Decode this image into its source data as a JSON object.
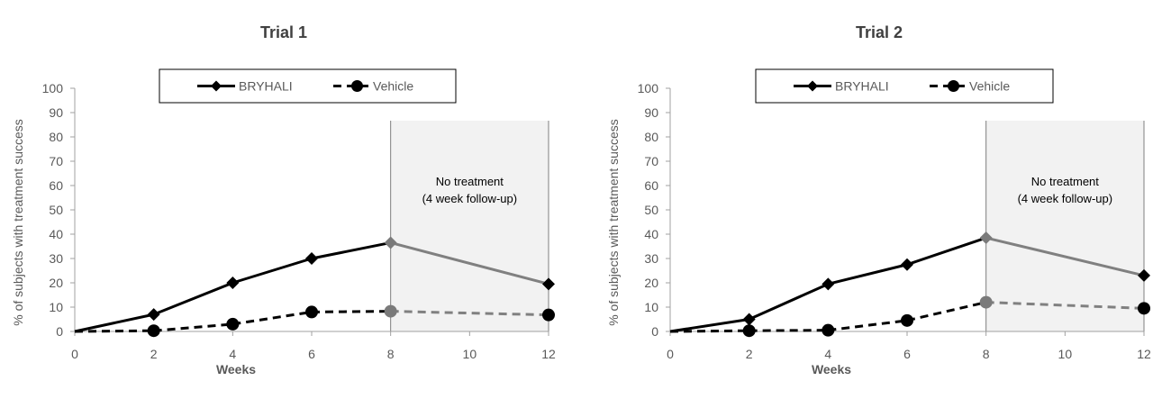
{
  "chart_data": [
    {
      "type": "line",
      "title": "Trial 1",
      "xlabel": "Weeks",
      "ylabel": "% of subjects with treatment success",
      "x_ticks": [
        0,
        2,
        4,
        6,
        8,
        10,
        12
      ],
      "y_ticks": [
        0,
        10,
        20,
        30,
        40,
        50,
        60,
        70,
        80,
        90,
        100
      ],
      "xlim": [
        0,
        12
      ],
      "ylim": [
        0,
        100
      ],
      "grid": false,
      "legend_position": "top-center",
      "shaded_region": {
        "x_start": 8,
        "x_end": 12,
        "label_line1": "No treatment",
        "label_line2": "(4 week follow-up)"
      },
      "series": [
        {
          "name": "BRYHALI",
          "marker": "diamond",
          "line": "solid",
          "x": [
            0,
            2,
            4,
            6,
            8,
            12
          ],
          "values": [
            0,
            7,
            20,
            30,
            36.5,
            19.5
          ]
        },
        {
          "name": "Vehicle",
          "marker": "circle",
          "line": "dashed",
          "x": [
            0,
            2,
            4,
            6,
            8,
            12
          ],
          "values": [
            0,
            0.3,
            3,
            8,
            8.3,
            6.8
          ]
        }
      ]
    },
    {
      "type": "line",
      "title": "Trial 2",
      "xlabel": "Weeks",
      "ylabel": "% of subjects with treatment success",
      "x_ticks": [
        0,
        2,
        4,
        6,
        8,
        10,
        12
      ],
      "y_ticks": [
        0,
        10,
        20,
        30,
        40,
        50,
        60,
        70,
        80,
        90,
        100
      ],
      "xlim": [
        0,
        12
      ],
      "ylim": [
        0,
        100
      ],
      "grid": false,
      "legend_position": "top-center",
      "shaded_region": {
        "x_start": 8,
        "x_end": 12,
        "label_line1": "No treatment",
        "label_line2": "(4 week follow-up)"
      },
      "series": [
        {
          "name": "BRYHALI",
          "marker": "diamond",
          "line": "solid",
          "x": [
            0,
            2,
            4,
            6,
            8,
            12
          ],
          "values": [
            0,
            5,
            19.5,
            27.5,
            38.5,
            23
          ]
        },
        {
          "name": "Vehicle",
          "marker": "circle",
          "line": "dashed",
          "x": [
            0,
            2,
            4,
            6,
            8,
            12
          ],
          "values": [
            0,
            0.3,
            0.5,
            4.5,
            12,
            9.5
          ]
        }
      ]
    }
  ],
  "colors": {
    "active_line": "#000000",
    "followup_line": "#808080",
    "shade": "#f2f2f2",
    "axis": "#a0a0a0",
    "text": "#595959",
    "title": "#404040"
  }
}
